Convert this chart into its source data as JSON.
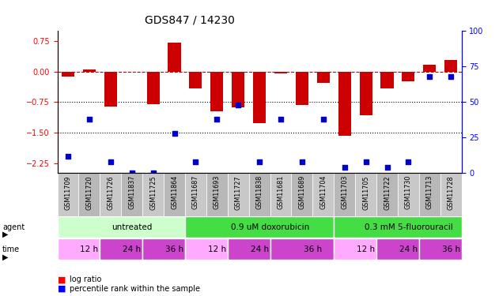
{
  "title": "GDS847 / 14230",
  "samples": [
    "GSM11709",
    "GSM11720",
    "GSM11726",
    "GSM11837",
    "GSM11725",
    "GSM11864",
    "GSM11687",
    "GSM11693",
    "GSM11727",
    "GSM11838",
    "GSM11681",
    "GSM11689",
    "GSM11704",
    "GSM11703",
    "GSM11705",
    "GSM11722",
    "GSM11730",
    "GSM11713",
    "GSM11728"
  ],
  "log_ratio": [
    -0.13,
    0.05,
    -0.85,
    0.0,
    -0.8,
    0.72,
    -0.42,
    -0.97,
    -0.87,
    -1.27,
    -0.04,
    -0.82,
    -0.27,
    -1.57,
    -1.07,
    -0.42,
    -0.24,
    0.18,
    0.28
  ],
  "percentile_rank": [
    12,
    38,
    8,
    0,
    0,
    28,
    8,
    38,
    48,
    8,
    38,
    8,
    38,
    4,
    8,
    4,
    8,
    68,
    68
  ],
  "agent_groups": [
    {
      "label": "untreated",
      "start": 0,
      "end": 6,
      "color": "#ccffcc"
    },
    {
      "label": "0.9 uM doxorubicin",
      "start": 6,
      "end": 13,
      "color": "#44dd44"
    },
    {
      "label": "0.3 mM 5-fluorouracil",
      "start": 13,
      "end": 19,
      "color": "#44dd44"
    }
  ],
  "time_groups": [
    {
      "label": "12 h",
      "start": 0,
      "end": 2,
      "color": "#ffaaff"
    },
    {
      "label": "24 h",
      "start": 2,
      "end": 4,
      "color": "#cc44cc"
    },
    {
      "label": "36 h",
      "start": 4,
      "end": 6,
      "color": "#cc44cc"
    },
    {
      "label": "12 h",
      "start": 6,
      "end": 8,
      "color": "#ffaaff"
    },
    {
      "label": "24 h",
      "start": 8,
      "end": 10,
      "color": "#cc44cc"
    },
    {
      "label": "36 h",
      "start": 10,
      "end": 13,
      "color": "#cc44cc"
    },
    {
      "label": "12 h",
      "start": 13,
      "end": 15,
      "color": "#ffaaff"
    },
    {
      "label": "24 h",
      "start": 15,
      "end": 17,
      "color": "#cc44cc"
    },
    {
      "label": "36 h",
      "start": 17,
      "end": 19,
      "color": "#cc44cc"
    }
  ],
  "bar_color": "#cc0000",
  "dot_color": "#0000cc",
  "ylim_left": [
    -2.5,
    1.0
  ],
  "ylim_right": [
    0,
    100
  ],
  "yticks_left": [
    0.75,
    0.0,
    -0.75,
    -1.5,
    -2.25
  ],
  "yticks_right": [
    100,
    75,
    50,
    25,
    0
  ],
  "hline_zero": 0.0,
  "hline_dotted": [
    -0.75,
    -1.5
  ],
  "bg_color": "#f0f0f0",
  "label_fontsize": 7,
  "tick_fontsize": 7,
  "title_fontsize": 10
}
